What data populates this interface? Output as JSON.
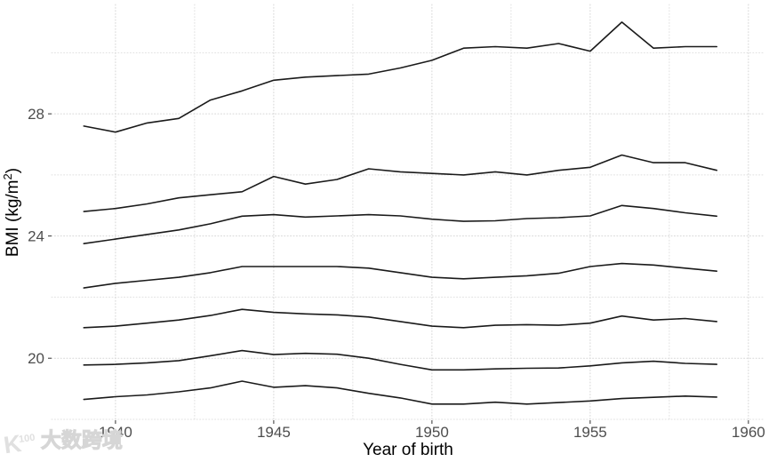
{
  "chart_data": {
    "type": "line",
    "title": "",
    "xlabel": "Year of birth",
    "ylabel": "BMI (kg/m²)",
    "legend": "none",
    "grid": "dotted",
    "line_color": "#1a1a1a",
    "gridline_major_color": "#d6d6d6",
    "gridline_minor_color": "#e0e0e0",
    "tick_color": "#333333",
    "tick_label_color": "#4d4d4d",
    "axis_title_color": "#000000",
    "xlim": [
      1937.98,
      1960.51
    ],
    "ylim": [
      17.97,
      31.58
    ],
    "x_major_gridlines": [
      1940,
      1945,
      1950,
      1955,
      1960
    ],
    "x_minor_gridlines": [
      1942.5,
      1947.5,
      1952.5,
      1957.5
    ],
    "y_major_gridlines": [
      20,
      24,
      28
    ],
    "y_minor_gridlines": [
      18,
      22,
      26,
      30
    ],
    "x_tick_labels": [
      "1940",
      "1945",
      "1950",
      "1955",
      "1960"
    ],
    "y_tick_labels": [
      "20",
      "24",
      "28"
    ],
    "x": [
      1939,
      1940,
      1941,
      1942,
      1943,
      1944,
      1945,
      1946,
      1947,
      1948,
      1949,
      1950,
      1951,
      1952,
      1953,
      1954,
      1955,
      1956,
      1957,
      1958,
      1959
    ],
    "series": [
      {
        "name": "line-1-top",
        "values": [
          27.6,
          27.4,
          27.7,
          27.85,
          28.45,
          28.75,
          29.1,
          29.2,
          29.25,
          29.3,
          29.5,
          29.75,
          30.15,
          30.2,
          30.15,
          30.3,
          30.05,
          31.0,
          30.15,
          30.2,
          30.2
        ]
      },
      {
        "name": "line-2",
        "values": [
          24.8,
          24.9,
          25.05,
          25.25,
          25.35,
          25.45,
          25.95,
          25.7,
          25.85,
          26.2,
          26.1,
          26.05,
          26.0,
          26.1,
          26.0,
          26.15,
          26.25,
          26.65,
          26.4,
          26.4,
          26.15
        ]
      },
      {
        "name": "line-3",
        "values": [
          23.75,
          23.9,
          24.05,
          24.2,
          24.4,
          24.65,
          24.7,
          24.62,
          24.66,
          24.7,
          24.66,
          24.55,
          24.48,
          24.5,
          24.57,
          24.6,
          24.66,
          25.0,
          24.9,
          24.76,
          24.65
        ]
      },
      {
        "name": "line-4",
        "values": [
          22.3,
          22.45,
          22.55,
          22.65,
          22.8,
          23.0,
          23.0,
          23.0,
          23.0,
          22.95,
          22.8,
          22.65,
          22.6,
          22.65,
          22.7,
          22.78,
          23.0,
          23.1,
          23.05,
          22.95,
          22.85
        ]
      },
      {
        "name": "line-5",
        "values": [
          21.0,
          21.05,
          21.15,
          21.25,
          21.4,
          21.6,
          21.5,
          21.45,
          21.42,
          21.35,
          21.2,
          21.05,
          21.0,
          21.08,
          21.1,
          21.08,
          21.15,
          21.38,
          21.25,
          21.3,
          21.2
        ]
      },
      {
        "name": "line-6",
        "values": [
          19.78,
          19.8,
          19.85,
          19.92,
          20.08,
          20.25,
          20.12,
          20.16,
          20.13,
          20.0,
          19.8,
          19.62,
          19.62,
          19.65,
          19.67,
          19.68,
          19.75,
          19.85,
          19.9,
          19.83,
          19.8
        ]
      },
      {
        "name": "line-7-bottom",
        "values": [
          18.65,
          18.74,
          18.8,
          18.9,
          19.03,
          19.25,
          19.05,
          19.1,
          19.03,
          18.85,
          18.7,
          18.5,
          18.5,
          18.56,
          18.5,
          18.55,
          18.6,
          18.68,
          18.72,
          18.76,
          18.73
        ]
      }
    ]
  },
  "watermark": {
    "logo_main": "K",
    "logo_sup": "100",
    "text": "大数跨境"
  }
}
